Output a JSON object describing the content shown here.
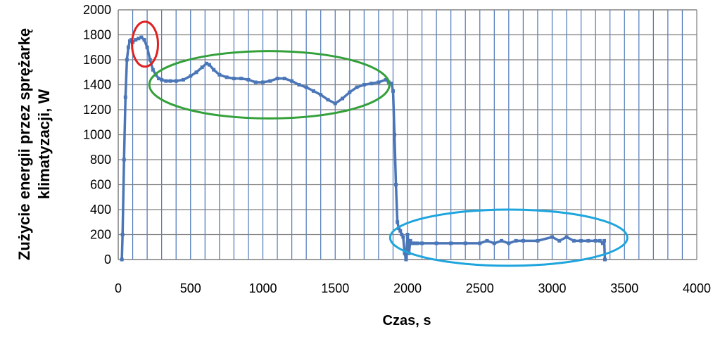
{
  "chart_data": {
    "type": "line",
    "title": "",
    "xlabel": "Czas, s",
    "ylabel_lines": [
      "Zużycie energii przez sprężarkę",
      "klimatyzacji, W"
    ],
    "xlim": [
      0,
      4000
    ],
    "ylim": [
      0,
      2000
    ],
    "x_ticks": [
      0,
      500,
      1000,
      1500,
      2000,
      2500,
      3000,
      3500,
      4000
    ],
    "y_ticks": [
      0,
      200,
      400,
      600,
      800,
      1000,
      1200,
      1400,
      1600,
      1800,
      2000
    ],
    "x_minor_grid_step": 100,
    "y_grid_step": 200,
    "grid": true,
    "legend": "none",
    "series": [
      {
        "color": "#4a76b8",
        "x": [
          25,
          30,
          40,
          50,
          60,
          70,
          80,
          90,
          100,
          120,
          140,
          160,
          180,
          200,
          220,
          240,
          260,
          280,
          300,
          330,
          360,
          400,
          450,
          500,
          540,
          580,
          610,
          630,
          660,
          700,
          750,
          800,
          850,
          900,
          950,
          1000,
          1050,
          1100,
          1150,
          1200,
          1250,
          1300,
          1350,
          1400,
          1450,
          1500,
          1550,
          1600,
          1650,
          1700,
          1750,
          1800,
          1850,
          1870,
          1890,
          1900,
          1910,
          1920,
          1930,
          1940,
          1950,
          1960,
          1970,
          1980,
          1990,
          2000,
          2005,
          2010,
          2020,
          2030,
          2040,
          2050,
          2070,
          2100,
          2200,
          2300,
          2400,
          2500,
          2550,
          2600,
          2650,
          2700,
          2750,
          2800,
          2900,
          3000,
          3050,
          3100,
          3150,
          3200,
          3250,
          3300,
          3330,
          3350,
          3360,
          3365
        ],
        "y": [
          0,
          200,
          800,
          1300,
          1600,
          1700,
          1750,
          1760,
          1740,
          1760,
          1770,
          1780,
          1760,
          1700,
          1600,
          1520,
          1480,
          1450,
          1440,
          1430,
          1430,
          1430,
          1440,
          1470,
          1500,
          1540,
          1570,
          1560,
          1520,
          1480,
          1460,
          1450,
          1450,
          1440,
          1420,
          1420,
          1430,
          1450,
          1450,
          1430,
          1400,
          1380,
          1350,
          1320,
          1280,
          1250,
          1290,
          1340,
          1380,
          1400,
          1410,
          1420,
          1440,
          1420,
          1410,
          1350,
          1000,
          600,
          300,
          250,
          230,
          200,
          180,
          50,
          0,
          200,
          150,
          50,
          150,
          130,
          130,
          130,
          130,
          130,
          130,
          130,
          130,
          130,
          150,
          130,
          150,
          130,
          150,
          150,
          150,
          180,
          150,
          180,
          150,
          150,
          150,
          150,
          150,
          130,
          150,
          0
        ]
      }
    ],
    "annotations": [
      {
        "shape": "ellipse",
        "color": "#e02020",
        "cx": 185,
        "cy": 1725,
        "rx": 90,
        "ry": 180
      },
      {
        "shape": "ellipse",
        "color": "#33a03a",
        "cx": 1045,
        "cy": 1400,
        "rx": 830,
        "ry": 270
      },
      {
        "shape": "ellipse",
        "color": "#1ea5dd",
        "cx": 2700,
        "cy": 175,
        "rx": 820,
        "ry": 225
      }
    ]
  }
}
